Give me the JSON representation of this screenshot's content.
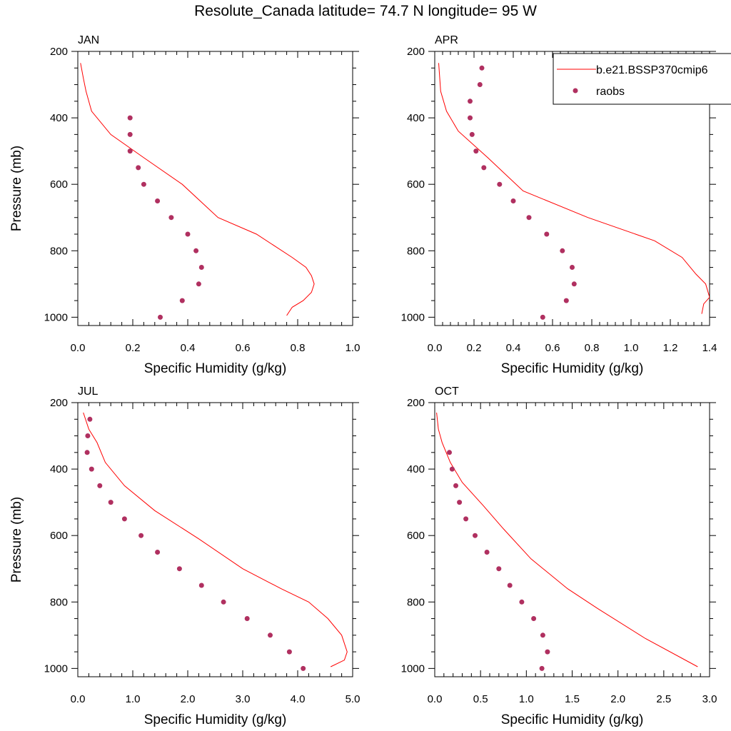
{
  "figure_title": "Resolute_Canada  latitude= 74.7 N longitude= 95 W",
  "legend": {
    "model_label": "b.e21.BSSP370cmip6",
    "obs_label": "raobs"
  },
  "colors": {
    "model_line": "#ff0000",
    "obs_marker": "#b03060",
    "axis": "#000000"
  },
  "chart_data": [
    {
      "type": "line+scatter",
      "title": "JAN",
      "xlabel": "Specific Humidity (g/kg)",
      "ylabel": "Pressure (mb)",
      "xlim": [
        0,
        1.0
      ],
      "ylim": [
        200,
        1025
      ],
      "y_inverted": true,
      "xticks": [
        0.0,
        0.2,
        0.4,
        0.6,
        0.8,
        1.0
      ],
      "xtick_labels": [
        "0.0",
        "0.2",
        "0.4",
        "0.6",
        "0.8",
        "1.0"
      ],
      "yticks": [
        200,
        400,
        600,
        800,
        1000
      ],
      "ytick_labels": [
        "200",
        "400",
        "600",
        "800",
        "1000"
      ],
      "series": [
        {
          "name": "b.e21.BSSP370cmip6",
          "kind": "line",
          "x": [
            0.76,
            0.78,
            0.82,
            0.85,
            0.86,
            0.85,
            0.83,
            0.78,
            0.65,
            0.51,
            0.38,
            0.24,
            0.12,
            0.05,
            0.03,
            0.02,
            0.01
          ],
          "y": [
            995,
            970,
            950,
            925,
            900,
            875,
            850,
            820,
            750,
            700,
            600,
            520,
            450,
            380,
            320,
            280,
            235
          ]
        },
        {
          "name": "raobs",
          "kind": "scatter",
          "x": [
            0.19,
            0.19,
            0.19,
            0.22,
            0.24,
            0.29,
            0.34,
            0.4,
            0.43,
            0.45,
            0.44,
            0.38,
            0.3
          ],
          "y": [
            400,
            450,
            500,
            550,
            600,
            650,
            700,
            750,
            800,
            850,
            900,
            950,
            1000
          ]
        }
      ]
    },
    {
      "type": "line+scatter",
      "title": "APR",
      "xlabel": "Specific Humidity (g/kg)",
      "ylabel": "",
      "xlim": [
        0,
        1.4
      ],
      "ylim": [
        200,
        1025
      ],
      "y_inverted": true,
      "xticks": [
        0.0,
        0.2,
        0.4,
        0.6,
        0.8,
        1.0,
        1.2,
        1.4
      ],
      "xtick_labels": [
        "0.0",
        "0.2",
        "0.4",
        "0.6",
        "0.8",
        "1.0",
        "1.2",
        "1.4"
      ],
      "yticks": [
        200,
        400,
        600,
        800,
        1000
      ],
      "ytick_labels": [
        "200",
        "400",
        "600",
        "800",
        "1000"
      ],
      "series": [
        {
          "name": "b.e21.BSSP370cmip6",
          "kind": "line",
          "x": [
            1.36,
            1.37,
            1.4,
            1.38,
            1.33,
            1.26,
            1.12,
            0.78,
            0.45,
            0.27,
            0.12,
            0.06,
            0.03,
            0.02
          ],
          "y": [
            990,
            960,
            940,
            900,
            870,
            820,
            770,
            700,
            620,
            520,
            440,
            380,
            320,
            235
          ]
        },
        {
          "name": "raobs",
          "kind": "scatter",
          "x": [
            0.24,
            0.23,
            0.18,
            0.18,
            0.19,
            0.21,
            0.25,
            0.33,
            0.4,
            0.48,
            0.57,
            0.65,
            0.7,
            0.71,
            0.67,
            0.55
          ],
          "y": [
            250,
            300,
            350,
            400,
            450,
            500,
            550,
            600,
            650,
            700,
            750,
            800,
            850,
            900,
            950,
            1000
          ]
        }
      ]
    },
    {
      "type": "line+scatter",
      "title": "JUL",
      "xlabel": "Specific Humidity (g/kg)",
      "ylabel": "Pressure (mb)",
      "xlim": [
        0,
        5.0
      ],
      "ylim": [
        200,
        1025
      ],
      "y_inverted": true,
      "xticks": [
        0.0,
        1.0,
        2.0,
        3.0,
        4.0,
        5.0
      ],
      "xtick_labels": [
        "0.0",
        "1.0",
        "2.0",
        "3.0",
        "4.0",
        "5.0"
      ],
      "yticks": [
        200,
        400,
        600,
        800,
        1000
      ],
      "ytick_labels": [
        "200",
        "400",
        "600",
        "800",
        "1000"
      ],
      "series": [
        {
          "name": "b.e21.BSSP370cmip6",
          "kind": "line",
          "x": [
            4.6,
            4.85,
            4.9,
            4.8,
            4.55,
            4.2,
            3.7,
            3.0,
            2.2,
            1.4,
            0.85,
            0.5,
            0.35,
            0.2,
            0.1
          ],
          "y": [
            995,
            975,
            950,
            900,
            850,
            800,
            760,
            700,
            610,
            525,
            450,
            380,
            320,
            280,
            230
          ]
        },
        {
          "name": "raobs",
          "kind": "scatter",
          "x": [
            0.22,
            0.18,
            0.17,
            0.25,
            0.4,
            0.6,
            0.85,
            1.15,
            1.45,
            1.85,
            2.25,
            2.65,
            3.08,
            3.5,
            3.85,
            4.1
          ],
          "y": [
            250,
            300,
            350,
            400,
            450,
            500,
            550,
            600,
            650,
            700,
            750,
            800,
            850,
            900,
            950,
            1000
          ]
        }
      ]
    },
    {
      "type": "line+scatter",
      "title": "OCT",
      "xlabel": "Specific Humidity (g/kg)",
      "ylabel": "",
      "xlim": [
        0,
        3.0
      ],
      "ylim": [
        200,
        1025
      ],
      "y_inverted": true,
      "xticks": [
        0.0,
        0.5,
        1.0,
        1.5,
        2.0,
        2.5,
        3.0
      ],
      "xtick_labels": [
        "0.0",
        "0.5",
        "1.0",
        "1.5",
        "2.0",
        "2.5",
        "3.0"
      ],
      "yticks": [
        200,
        400,
        600,
        800,
        1000
      ],
      "ytick_labels": [
        "200",
        "400",
        "600",
        "800",
        "1000"
      ],
      "series": [
        {
          "name": "b.e21.BSSP370cmip6",
          "kind": "line",
          "x": [
            2.87,
            2.3,
            1.78,
            1.45,
            1.05,
            0.75,
            0.53,
            0.3,
            0.17,
            0.08,
            0.04,
            0.02
          ],
          "y": [
            995,
            910,
            820,
            760,
            670,
            580,
            510,
            440,
            380,
            320,
            280,
            230
          ]
        },
        {
          "name": "raobs",
          "kind": "scatter",
          "x": [
            0.16,
            0.19,
            0.23,
            0.27,
            0.34,
            0.44,
            0.57,
            0.7,
            0.82,
            0.95,
            1.08,
            1.18,
            1.23,
            1.17
          ],
          "y": [
            350,
            400,
            450,
            500,
            550,
            600,
            650,
            700,
            750,
            800,
            850,
            900,
            950,
            1000
          ]
        }
      ]
    }
  ]
}
